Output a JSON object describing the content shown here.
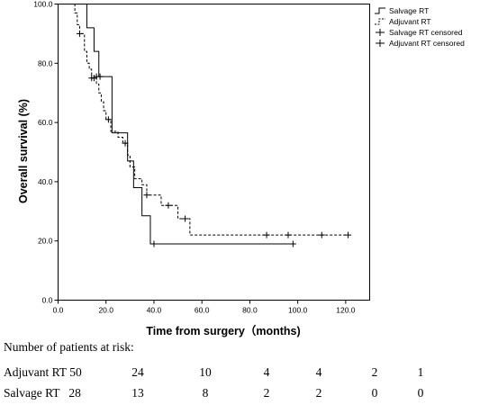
{
  "chart_data": {
    "type": "line",
    "xlabel": "Time from surgery（months)",
    "ylabel": "Overall survival (%)",
    "xlim": [
      0,
      130
    ],
    "ylim": [
      0,
      100
    ],
    "x_ticks": [
      "0.0",
      "20.0",
      "40.0",
      "60.0",
      "80.0",
      "100.0",
      "120.0"
    ],
    "y_ticks": [
      "0.0",
      "20.0",
      "40.0",
      "60.0",
      "80.0",
      "100.0"
    ],
    "grid": false,
    "legend_position": "top-right",
    "series": [
      {
        "name": "Salvage RT",
        "style": "solid",
        "steps": [
          [
            5,
            100
          ],
          [
            12,
            100
          ],
          [
            12,
            92
          ],
          [
            15,
            92
          ],
          [
            15,
            84
          ],
          [
            17,
            84
          ],
          [
            17,
            75.5
          ],
          [
            22.5,
            75.5
          ],
          [
            22.5,
            56.5
          ],
          [
            29,
            56.5
          ],
          [
            29,
            47
          ],
          [
            31.5,
            47
          ],
          [
            31.5,
            38
          ],
          [
            35,
            38
          ],
          [
            35,
            28.5
          ],
          [
            38.5,
            28.5
          ],
          [
            38.5,
            19
          ],
          [
            98,
            19
          ]
        ],
        "censored": [
          [
            16,
            75.5
          ],
          [
            17.5,
            75.5
          ],
          [
            40,
            19
          ],
          [
            98,
            19
          ]
        ]
      },
      {
        "name": "Adjuvant RT",
        "style": "dashed",
        "steps": [
          [
            5,
            100
          ],
          [
            7,
            100
          ],
          [
            7,
            97
          ],
          [
            8,
            97
          ],
          [
            8,
            93
          ],
          [
            9,
            93
          ],
          [
            9,
            90
          ],
          [
            11,
            90
          ],
          [
            11,
            84
          ],
          [
            12,
            84
          ],
          [
            12,
            80
          ],
          [
            13,
            80
          ],
          [
            13,
            78
          ],
          [
            14,
            78
          ],
          [
            14,
            75
          ],
          [
            16,
            75
          ],
          [
            16,
            73
          ],
          [
            17,
            73
          ],
          [
            17,
            70
          ],
          [
            18,
            70
          ],
          [
            18,
            67
          ],
          [
            19,
            67
          ],
          [
            19,
            64
          ],
          [
            20,
            64
          ],
          [
            20,
            61
          ],
          [
            22,
            61
          ],
          [
            22,
            57
          ],
          [
            25,
            57
          ],
          [
            25,
            55
          ],
          [
            27,
            55
          ],
          [
            27,
            53
          ],
          [
            29,
            53
          ],
          [
            29,
            49
          ],
          [
            30,
            49
          ],
          [
            30,
            45
          ],
          [
            32,
            45
          ],
          [
            32,
            41
          ],
          [
            35,
            41
          ],
          [
            35,
            39
          ],
          [
            37,
            39
          ],
          [
            37,
            35.5
          ],
          [
            43,
            35.5
          ],
          [
            43,
            32
          ],
          [
            50,
            32
          ],
          [
            50,
            27.5
          ],
          [
            55,
            27.5
          ],
          [
            55,
            22
          ],
          [
            121,
            22
          ]
        ],
        "censored": [
          [
            9,
            90
          ],
          [
            14,
            75
          ],
          [
            15,
            75
          ],
          [
            21,
            61
          ],
          [
            28,
            53
          ],
          [
            37,
            35.5
          ],
          [
            46,
            32
          ],
          [
            53,
            27.5
          ],
          [
            87,
            22
          ],
          [
            96,
            22
          ],
          [
            110,
            22
          ],
          [
            121,
            22
          ]
        ]
      }
    ],
    "legend": [
      "Salvage RT",
      "Adjuvant RT",
      "Salvage RT censored",
      "Adjuvant RT censored"
    ]
  },
  "risk_table": {
    "title": "Number of patients at risk:",
    "rows": [
      {
        "label": "Adjuvant RT 50",
        "values": [
          "24",
          "10",
          "4",
          "4",
          "2",
          "1"
        ]
      },
      {
        "label": "Salvage RT   28",
        "values": [
          "13",
          "8",
          "2",
          "2",
          "0",
          "0"
        ]
      }
    ]
  }
}
